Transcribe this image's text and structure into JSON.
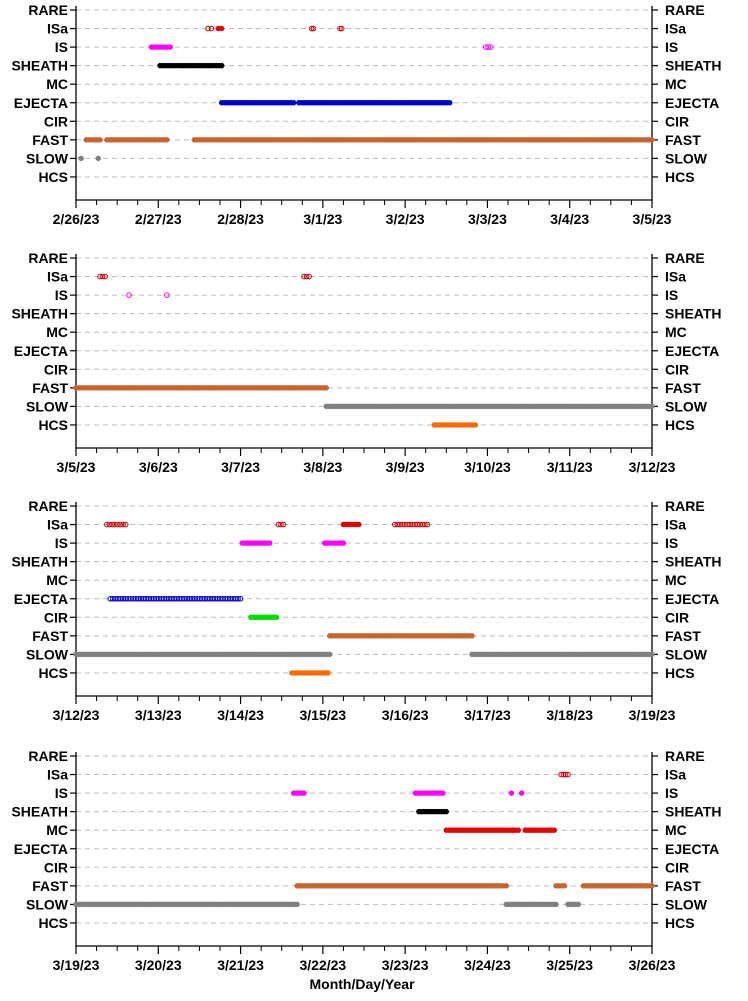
{
  "chart_data": {
    "type": "scatter",
    "categories": [
      "RARE",
      "ISa",
      "IS",
      "SHEATH",
      "MC",
      "EJECTA",
      "CIR",
      "FAST",
      "SLOW",
      "HCS"
    ],
    "xlabel": "Month/Day/Year",
    "colors": {
      "ISa": "#cc0000",
      "IS": "#ff00ff",
      "SHEATH": "#000000",
      "MC": "#e60000",
      "EJECTA": "#0000cc",
      "CIR": "#00dd00",
      "FAST": "#c8642d",
      "SLOW": "#808080",
      "HCS": "#ff6a00"
    },
    "grid": true,
    "panels": [
      {
        "xlim": [
          "2/26/23",
          "3/5/23"
        ],
        "tick_labels": [
          "2/26/23",
          "2/27/23",
          "2/28/23",
          "3/1/23",
          "3/2/23",
          "3/3/23",
          "3/4/23",
          "3/5/23"
        ],
        "segments": [
          {
            "cat": "ISa",
            "start": "2/27/23 14:30",
            "end": "2/27/23 15:30",
            "style": "open",
            "color": "#cc0000"
          },
          {
            "cat": "ISa",
            "start": "2/27/23 17:30",
            "end": "2/27/23 18:30",
            "style": "filled",
            "color": "#e60000"
          },
          {
            "cat": "ISa",
            "start": "2/28/23 20:45",
            "end": "2/28/23 21:15",
            "style": "open",
            "color": "#cc0000"
          },
          {
            "cat": "ISa",
            "start": "3/1/23 05:00",
            "end": "3/1/23 05:30",
            "style": "open",
            "color": "#cc0000"
          },
          {
            "cat": "IS",
            "start": "2/26/23 22:00",
            "end": "2/27/23 03:30",
            "style": "filled",
            "color": "#ff00ff"
          },
          {
            "cat": "IS",
            "start": "3/2/23 23:30",
            "end": "3/3/23 01:00",
            "style": "open",
            "color": "#ff00ff"
          },
          {
            "cat": "SHEATH",
            "start": "2/27/23 00:30",
            "end": "2/27/23 18:30",
            "style": "filled",
            "color": "#000000"
          },
          {
            "cat": "EJECTA",
            "start": "2/27/23 18:30",
            "end": "2/28/23 15:30",
            "style": "filled",
            "color": "#0000cc"
          },
          {
            "cat": "EJECTA",
            "start": "2/28/23 17:00",
            "end": "3/2/23 13:00",
            "style": "filled",
            "color": "#0000cc"
          },
          {
            "cat": "FAST",
            "start": "2/26/23 03:00",
            "end": "2/26/23 07:00",
            "style": "filled",
            "color": "#c8642d"
          },
          {
            "cat": "FAST",
            "start": "2/26/23 09:00",
            "end": "2/27/23 02:30",
            "style": "filled",
            "color": "#c8642d"
          },
          {
            "cat": "FAST",
            "start": "2/27/23 10:30",
            "end": "3/5/23 00:00",
            "style": "filled",
            "color": "#c8642d"
          },
          {
            "cat": "SLOW",
            "start": "2/26/23 01:30",
            "end": "2/26/23 01:30",
            "style": "filled",
            "color": "#808080"
          },
          {
            "cat": "SLOW",
            "start": "2/26/23 06:30",
            "end": "2/26/23 06:30",
            "style": "filled",
            "color": "#808080"
          }
        ]
      },
      {
        "xlim": [
          "3/5/23",
          "3/12/23"
        ],
        "tick_labels": [
          "3/5/23",
          "3/6/23",
          "3/7/23",
          "3/8/23",
          "3/9/23",
          "3/10/23",
          "3/11/23",
          "3/12/23"
        ],
        "segments": [
          {
            "cat": "ISa",
            "start": "3/5/23 07:00",
            "end": "3/5/23 08:30",
            "style": "open",
            "color": "#cc0000"
          },
          {
            "cat": "ISa",
            "start": "3/7/23 18:30",
            "end": "3/7/23 20:00",
            "style": "open",
            "color": "#cc0000"
          },
          {
            "cat": "IS",
            "start": "3/5/23 15:30",
            "end": "3/5/23 15:30",
            "style": "open",
            "color": "#ff00ff"
          },
          {
            "cat": "IS",
            "start": "3/6/23 02:30",
            "end": "3/6/23 02:30",
            "style": "open",
            "color": "#ff00ff"
          },
          {
            "cat": "FAST",
            "start": "3/5/23 00:00",
            "end": "3/8/23 01:00",
            "style": "filled",
            "color": "#c8642d"
          },
          {
            "cat": "SLOW",
            "start": "3/8/23 01:00",
            "end": "3/12/23 00:00",
            "style": "filled",
            "color": "#808080"
          },
          {
            "cat": "HCS",
            "start": "3/9/23 08:30",
            "end": "3/9/23 20:30",
            "style": "filled",
            "color": "#ff6a00"
          }
        ]
      },
      {
        "xlim": [
          "3/12/23",
          "3/19/23"
        ],
        "tick_labels": [
          "3/12/23",
          "3/13/23",
          "3/14/23",
          "3/15/23",
          "3/16/23",
          "3/17/23",
          "3/18/23",
          "3/19/23"
        ],
        "segments": [
          {
            "cat": "ISa",
            "start": "3/12/23 09:00",
            "end": "3/12/23 14:30",
            "style": "open",
            "color": "#cc0000"
          },
          {
            "cat": "ISa",
            "start": "3/14/23 11:00",
            "end": "3/14/23 12:30",
            "style": "open",
            "color": "#cc0000"
          },
          {
            "cat": "ISa",
            "start": "3/15/23 06:00",
            "end": "3/15/23 10:30",
            "style": "filled",
            "color": "#e60000"
          },
          {
            "cat": "ISa",
            "start": "3/15/23 21:00",
            "end": "3/16/23 06:30",
            "style": "open",
            "color": "#cc0000"
          },
          {
            "cat": "IS",
            "start": "3/14/23 00:30",
            "end": "3/14/23 08:30",
            "style": "filled",
            "color": "#ff00ff"
          },
          {
            "cat": "IS",
            "start": "3/15/23 00:30",
            "end": "3/15/23 06:00",
            "style": "filled",
            "color": "#ff00ff"
          },
          {
            "cat": "EJECTA",
            "start": "3/12/23 10:00",
            "end": "3/14/23 00:00",
            "style": "open",
            "color": "#0000cc"
          },
          {
            "cat": "CIR",
            "start": "3/14/23 03:00",
            "end": "3/14/23 10:30",
            "style": "filled",
            "color": "#00dd00"
          },
          {
            "cat": "FAST",
            "start": "3/15/23 02:00",
            "end": "3/16/23 19:30",
            "style": "filled",
            "color": "#c8642d"
          },
          {
            "cat": "SLOW",
            "start": "3/12/23 00:00",
            "end": "3/15/23 02:00",
            "style": "filled",
            "color": "#808080"
          },
          {
            "cat": "SLOW",
            "start": "3/16/23 19:30",
            "end": "3/19/23 00:00",
            "style": "filled",
            "color": "#808080"
          },
          {
            "cat": "HCS",
            "start": "3/14/23 15:00",
            "end": "3/15/23 01:30",
            "style": "filled",
            "color": "#ff6a00"
          }
        ]
      },
      {
        "xlim": [
          "3/19/23",
          "3/26/23"
        ],
        "tick_labels": [
          "3/19/23",
          "3/20/23",
          "3/21/23",
          "3/22/23",
          "3/23/23",
          "3/24/23",
          "3/25/23",
          "3/26/23"
        ],
        "segments": [
          {
            "cat": "ISa",
            "start": "3/24/23 21:30",
            "end": "3/24/23 23:30",
            "style": "open",
            "color": "#cc0000"
          },
          {
            "cat": "IS",
            "start": "3/21/23 15:30",
            "end": "3/21/23 18:30",
            "style": "filled",
            "color": "#ff00ff"
          },
          {
            "cat": "IS",
            "start": "3/23/23 03:00",
            "end": "3/23/23 11:00",
            "style": "filled",
            "color": "#ff00ff"
          },
          {
            "cat": "IS",
            "start": "3/24/23 07:00",
            "end": "3/24/23 07:00",
            "style": "filled",
            "color": "#ff00ff"
          },
          {
            "cat": "IS",
            "start": "3/24/23 10:00",
            "end": "3/24/23 10:00",
            "style": "filled",
            "color": "#ff00ff"
          },
          {
            "cat": "SHEATH",
            "start": "3/23/23 04:00",
            "end": "3/23/23 12:00",
            "style": "filled",
            "color": "#000000"
          },
          {
            "cat": "MC",
            "start": "3/23/23 12:00",
            "end": "3/24/23 09:00",
            "style": "filled",
            "color": "#e60000"
          },
          {
            "cat": "MC",
            "start": "3/24/23 11:00",
            "end": "3/24/23 19:30",
            "style": "filled",
            "color": "#e60000"
          },
          {
            "cat": "FAST",
            "start": "3/21/23 16:30",
            "end": "3/24/23 05:30",
            "style": "filled",
            "color": "#c8642d"
          },
          {
            "cat": "FAST",
            "start": "3/24/23 20:00",
            "end": "3/24/23 22:30",
            "style": "filled",
            "color": "#c8642d"
          },
          {
            "cat": "FAST",
            "start": "3/25/23 04:00",
            "end": "3/26/23 00:00",
            "style": "filled",
            "color": "#c8642d"
          },
          {
            "cat": "SLOW",
            "start": "3/19/23 00:00",
            "end": "3/21/23 16:30",
            "style": "filled",
            "color": "#808080"
          },
          {
            "cat": "SLOW",
            "start": "3/24/23 05:30",
            "end": "3/24/23 20:00",
            "style": "filled",
            "color": "#808080"
          },
          {
            "cat": "SLOW",
            "start": "3/24/23 23:30",
            "end": "3/25/23 02:30",
            "style": "filled",
            "color": "#808080"
          }
        ]
      }
    ]
  }
}
